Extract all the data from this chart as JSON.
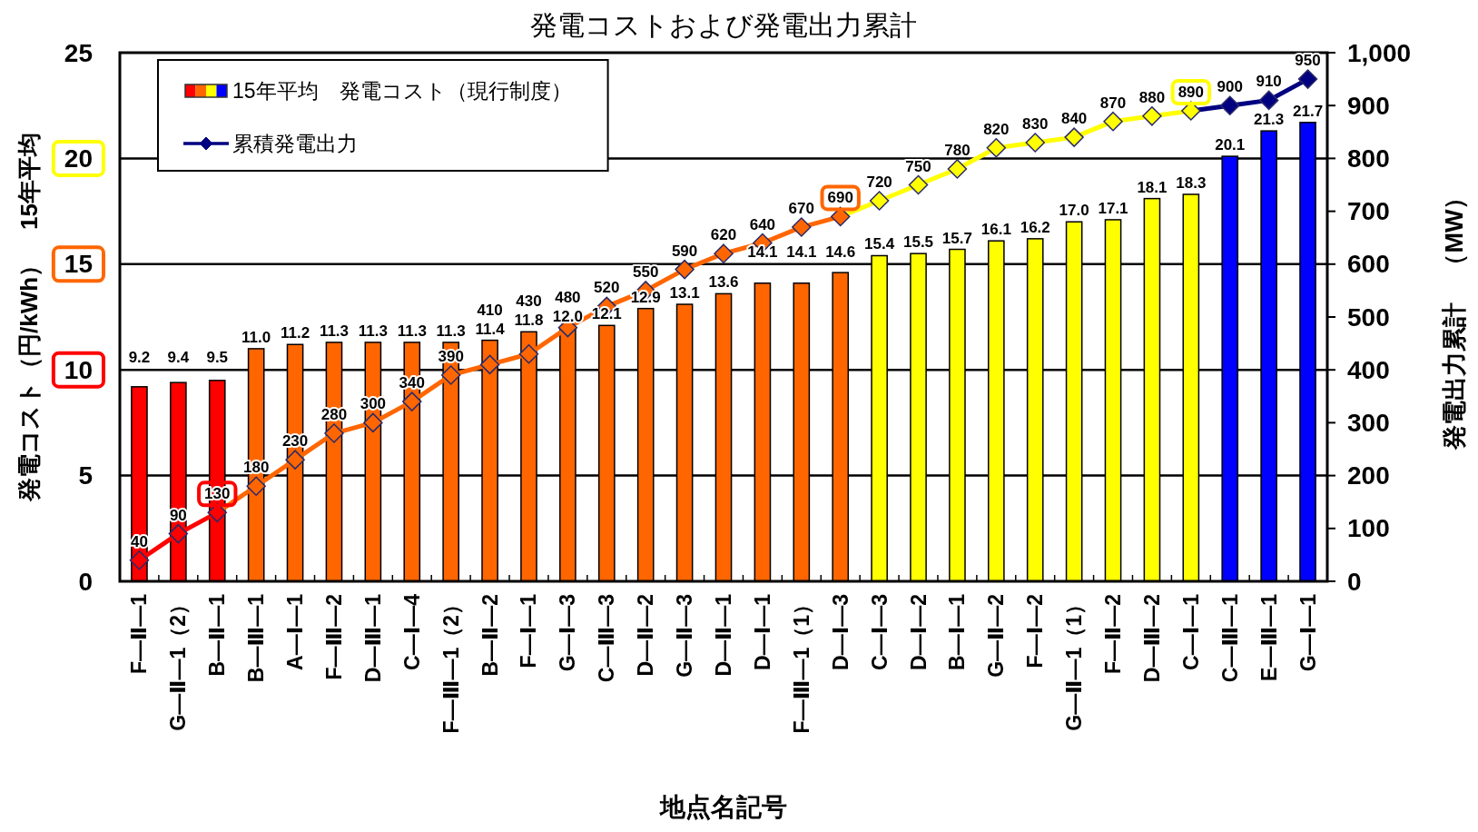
{
  "chart_data": {
    "type": "bar",
    "title": "発電コストおよび発電出力累計",
    "xlabel": "地点名記号",
    "ylabel": "発電コスト（円/kWh）　15年平均",
    "y2label": "発電出力累計　（MW）",
    "categories": [
      "F—Ⅱ—1",
      "G—Ⅱ—1（2）",
      "B—Ⅱ—1",
      "B—Ⅲ—1",
      "A—Ⅰ—1",
      "F—Ⅲ—2",
      "D—Ⅲ—1",
      "C—Ⅰ—4",
      "F—Ⅲ—1（2）",
      "B—Ⅱ—2",
      "F—Ⅰ—1",
      "G—Ⅰ—3",
      "C—Ⅲ—3",
      "D—Ⅱ—2",
      "G—Ⅱ—3",
      "D—Ⅱ—1",
      "D—Ⅰ—1",
      "F—Ⅲ—1（1）",
      "D—Ⅰ—3",
      "C—Ⅰ—3",
      "D—Ⅰ—2",
      "B—Ⅰ—1",
      "G—Ⅱ—2",
      "F—Ⅰ—2",
      "G—Ⅱ—1（1）",
      "F—Ⅱ—2",
      "D—Ⅲ—2",
      "C—Ⅰ—1",
      "C—Ⅲ—1",
      "E—Ⅲ—1",
      "G—Ⅰ—1"
    ],
    "series": [
      {
        "name": "15年平均　発電コスト（現行制度）",
        "colors": [
          "#ff0000",
          "#ff0000",
          "#ff0000",
          "#ff6600",
          "#ff6600",
          "#ff6600",
          "#ff6600",
          "#ff6600",
          "#ff6600",
          "#ff6600",
          "#ff6600",
          "#ff6600",
          "#ff6600",
          "#ff6600",
          "#ff6600",
          "#ff6600",
          "#ff6600",
          "#ff6600",
          "#ff6600",
          "#ffff00",
          "#ffff00",
          "#ffff00",
          "#ffff00",
          "#ffff00",
          "#ffff00",
          "#ffff00",
          "#ffff00",
          "#ffff00",
          "#0000ff",
          "#0000ff",
          "#0000ff"
        ],
        "values": [
          9.2,
          9.4,
          9.5,
          11.0,
          11.2,
          11.3,
          11.3,
          11.3,
          11.3,
          11.4,
          11.8,
          12.0,
          12.1,
          12.9,
          13.1,
          13.6,
          14.1,
          14.1,
          14.6,
          15.4,
          15.5,
          15.7,
          16.1,
          16.2,
          17.0,
          17.1,
          18.1,
          18.3,
          20.1,
          21.3,
          21.7
        ],
        "value_labels": [
          "9.2",
          "9.4",
          "9.5",
          "11.0",
          "11.2",
          "11.3",
          "11.3",
          "11.3",
          "11.3",
          "11.4",
          "11.8",
          "12.0",
          "12.1",
          "12.9",
          "13.1",
          "13.6",
          "14.1",
          "14.1",
          "14.6",
          "15.4",
          "15.5",
          "15.7",
          "16.1",
          "16.2",
          "17.0",
          "17.1",
          "18.1",
          "18.3",
          "20.1",
          "21.3",
          "21.7"
        ]
      },
      {
        "name": "累積発電出力",
        "type": "line",
        "axis": "y2",
        "color": "#000080",
        "marker": "diamond",
        "colors": [
          "#ff0000",
          "#ff0000",
          "#ff0000",
          "#ff6600",
          "#ff6600",
          "#ff6600",
          "#ff6600",
          "#ff6600",
          "#ff6600",
          "#ff6600",
          "#ff6600",
          "#ff6600",
          "#ff6600",
          "#ff6600",
          "#ff6600",
          "#ff6600",
          "#ff6600",
          "#ff6600",
          "#ff6600",
          "#ffff00",
          "#ffff00",
          "#ffff00",
          "#ffff00",
          "#ffff00",
          "#ffff00",
          "#ffff00",
          "#ffff00",
          "#ffff00",
          "#000080",
          "#000080",
          "#000080"
        ],
        "values": [
          40,
          90,
          130,
          180,
          230,
          280,
          300,
          340,
          390,
          410,
          430,
          480,
          520,
          550,
          590,
          620,
          640,
          670,
          690,
          720,
          750,
          780,
          820,
          830,
          840,
          870,
          880,
          890,
          900,
          910,
          950
        ],
        "value_labels": [
          "40",
          "90",
          "130",
          "180",
          "230",
          "280",
          "300",
          "340",
          "390",
          "410",
          "430",
          "480",
          "520",
          "550",
          "590",
          "620",
          "640",
          "670",
          "690",
          "720",
          "750",
          "780",
          "820",
          "830",
          "840",
          "870",
          "880",
          "890",
          "900",
          "910",
          "950"
        ]
      }
    ],
    "ylim": [
      0,
      25
    ],
    "yticks": [
      0,
      5,
      10,
      15,
      20,
      25
    ],
    "y2lim": [
      0,
      1000
    ],
    "y2ticks": [
      0,
      100,
      200,
      300,
      400,
      500,
      600,
      700,
      800,
      900,
      {
        "value": 1000,
        "label": "1,000"
      }
    ],
    "grid": "y",
    "legend": "top left"
  }
}
